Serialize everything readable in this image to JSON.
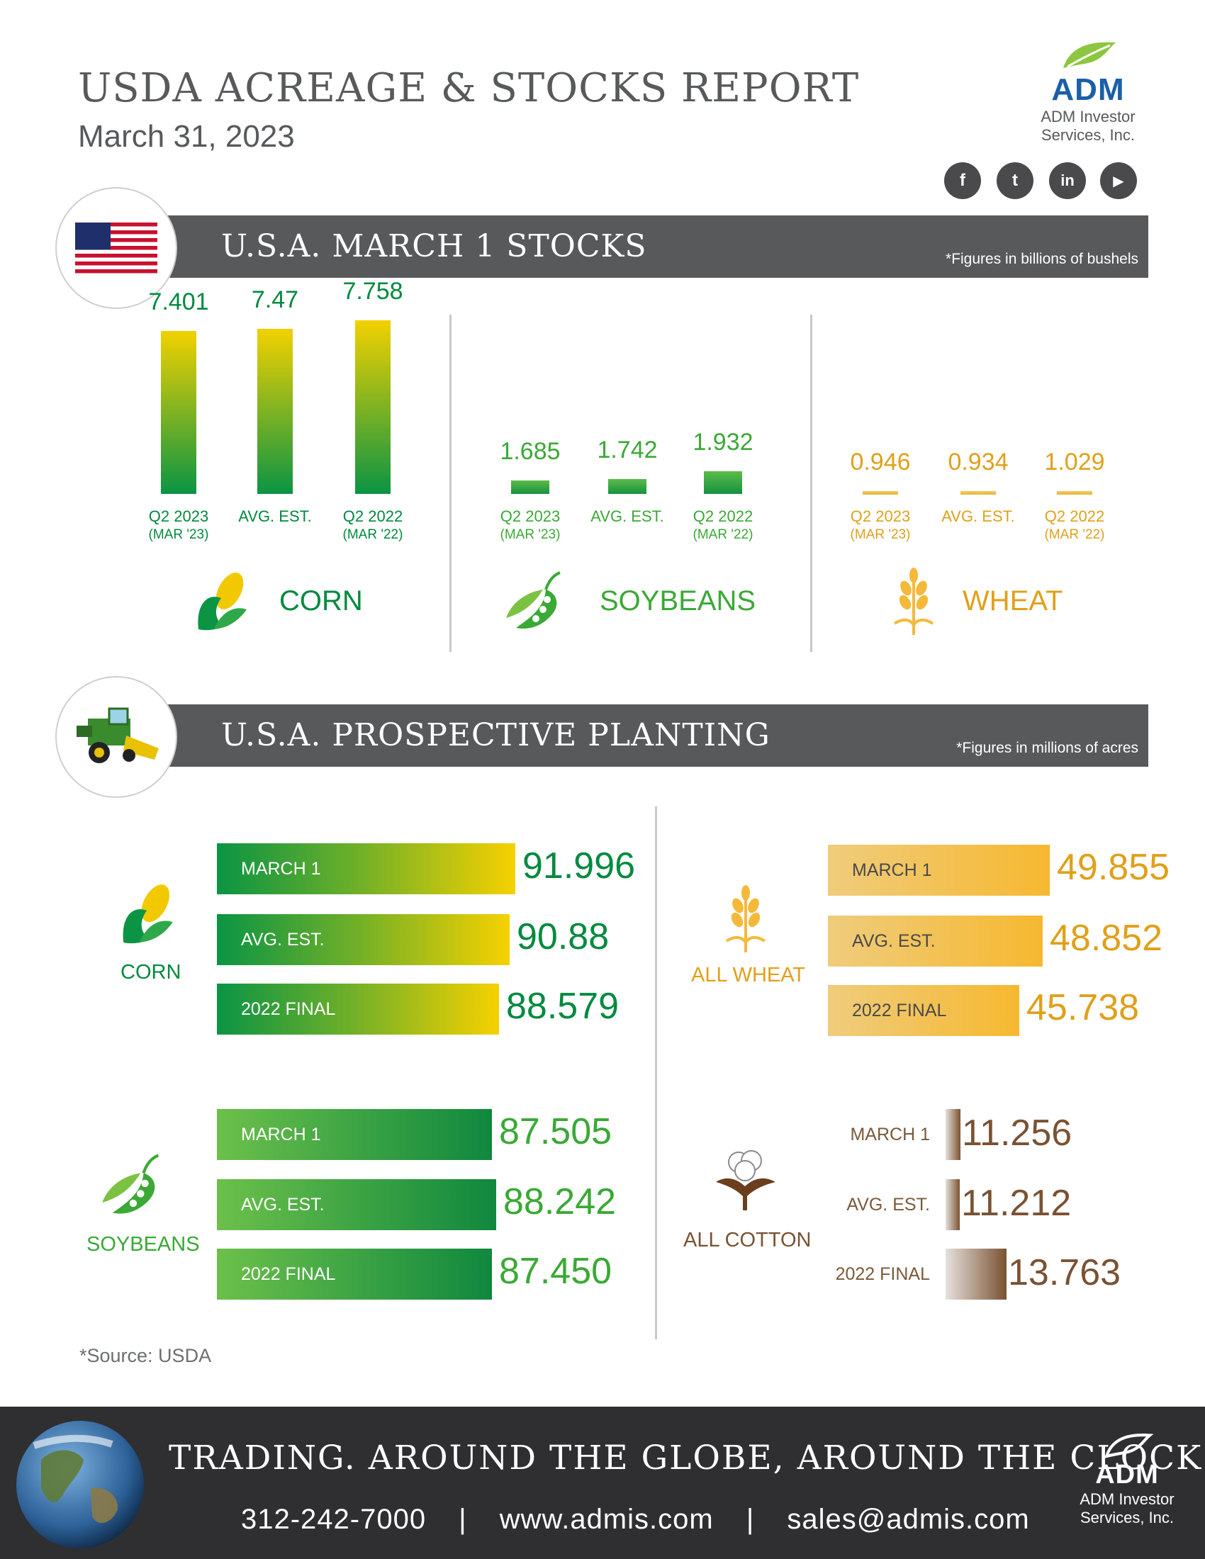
{
  "header": {
    "title": "USDA ACREAGE & STOCKS REPORT",
    "date": "March 31, 2023"
  },
  "brand": {
    "name": "ADM",
    "sub1": "ADM Investor",
    "sub2": "Services, Inc."
  },
  "social": [
    {
      "icon": "facebook-icon",
      "glyph": "f"
    },
    {
      "icon": "twitter-icon",
      "glyph": "t"
    },
    {
      "icon": "linkedin-icon",
      "glyph": "in"
    },
    {
      "icon": "youtube-icon",
      "glyph": "▶"
    }
  ],
  "stocks": {
    "title": "U.S.A. MARCH 1 STOCKS",
    "note": "*Figures in billions of bushels",
    "crops": [
      {
        "name": "CORN",
        "color": "#008a3e",
        "labels": [
          [
            "Q2 2023",
            "(MAR '23)"
          ],
          [
            "AVG. EST.",
            ""
          ],
          [
            "Q2 2022",
            "(MAR '22)"
          ]
        ],
        "display": [
          "7.401",
          "7.47",
          "7.758"
        ]
      },
      {
        "name": "SOYBEANS",
        "color": "#3aa935",
        "labels": [
          [
            "Q2 2023",
            "(MAR '23)"
          ],
          [
            "AVG. EST.",
            ""
          ],
          [
            "Q2 2022",
            "(MAR '22)"
          ]
        ],
        "display": [
          "1.685",
          "1.742",
          "1.932"
        ]
      },
      {
        "name": "WHEAT",
        "color": "#e0a01a",
        "labels": [
          [
            "Q2 2023",
            "(MAR '23)"
          ],
          [
            "AVG. EST.",
            ""
          ],
          [
            "Q2 2022",
            "(MAR '22)"
          ]
        ],
        "display": [
          "0.946",
          "0.934",
          "1.029"
        ]
      }
    ]
  },
  "planting": {
    "title": "U.S.A. PROSPECTIVE PLANTING",
    "note": "*Figures in millions of acres",
    "corn": {
      "name": "CORN",
      "labels": [
        "MARCH 1",
        "AVG. EST.",
        "2022 FINAL"
      ],
      "display": [
        "91.996",
        "90.88",
        "88.579"
      ]
    },
    "soybeans": {
      "name": "SOYBEANS",
      "labels": [
        "MARCH 1",
        "AVG. EST.",
        "2022 FINAL"
      ],
      "display": [
        "87.505",
        "88.242",
        "87.450"
      ]
    },
    "wheat": {
      "name": "ALL WHEAT",
      "labels": [
        "MARCH 1",
        "AVG. EST.",
        "2022 FINAL"
      ],
      "display": [
        "49.855",
        "48.852",
        "45.738"
      ]
    },
    "cotton": {
      "name": "ALL COTTON",
      "labels": [
        "MARCH 1",
        "AVG. EST.",
        "2022 FINAL"
      ],
      "display": [
        "11.256",
        "11.212",
        "13.763"
      ]
    }
  },
  "chart_data": [
    {
      "type": "bar",
      "title": "U.S.A. MARCH 1 STOCKS",
      "subtitle": "CORN",
      "categories": [
        "Q2 2023 (MAR '23)",
        "AVG. EST.",
        "Q2 2022 (MAR '22)"
      ],
      "values": [
        7.401,
        7.47,
        7.758
      ],
      "note": "*Figures in billions of bushels"
    },
    {
      "type": "bar",
      "title": "U.S.A. MARCH 1 STOCKS",
      "subtitle": "SOYBEANS",
      "categories": [
        "Q2 2023 (MAR '23)",
        "AVG. EST.",
        "Q2 2022 (MAR '22)"
      ],
      "values": [
        1.685,
        1.742,
        1.932
      ]
    },
    {
      "type": "bar",
      "title": "U.S.A. MARCH 1 STOCKS",
      "subtitle": "WHEAT",
      "categories": [
        "Q2 2023 (MAR '23)",
        "AVG. EST.",
        "Q2 2022 (MAR '22)"
      ],
      "values": [
        0.946,
        0.934,
        1.029
      ]
    },
    {
      "type": "bar",
      "title": "U.S.A. PROSPECTIVE PLANTING",
      "subtitle": "CORN",
      "categories": [
        "MARCH 1",
        "AVG. EST.",
        "2022 FINAL"
      ],
      "values": [
        91.996,
        90.88,
        88.579
      ],
      "note": "*Figures in millions of acres"
    },
    {
      "type": "bar",
      "title": "U.S.A. PROSPECTIVE PLANTING",
      "subtitle": "SOYBEANS",
      "categories": [
        "MARCH 1",
        "AVG. EST.",
        "2022 FINAL"
      ],
      "values": [
        87.505,
        88.242,
        87.45
      ]
    },
    {
      "type": "bar",
      "title": "U.S.A. PROSPECTIVE PLANTING",
      "subtitle": "ALL WHEAT",
      "categories": [
        "MARCH 1",
        "AVG. EST.",
        "2022 FINAL"
      ],
      "values": [
        49.855,
        48.852,
        45.738
      ]
    },
    {
      "type": "bar",
      "title": "U.S.A. PROSPECTIVE PLANTING",
      "subtitle": "ALL COTTON",
      "categories": [
        "MARCH 1",
        "AVG. EST.",
        "2022 FINAL"
      ],
      "values": [
        11.256,
        11.212,
        13.763
      ]
    }
  ],
  "source": "*Source: USDA",
  "footer": {
    "slogan": "TRADING. AROUND THE GLOBE, AROUND THE CLOCK.",
    "phone": "312-242-7000",
    "sep": "|",
    "web": "www.admis.com",
    "email": "sales@admis.com"
  }
}
